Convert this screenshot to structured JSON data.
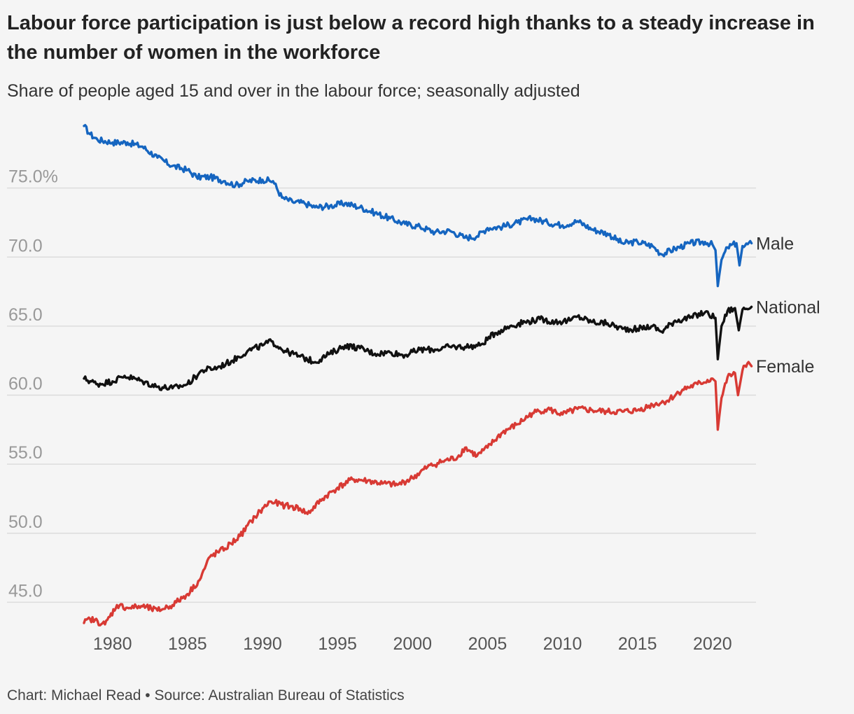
{
  "title": "Labour force participation is just below a record high thanks to a steady increase in the number of women in the workforce",
  "subtitle": "Share of people aged 15 and over in the labour force; seasonally adjusted",
  "footer": {
    "credit": "Chart: Michael Read",
    "separator": "•",
    "source": "Source: Australian Bureau of Statistics"
  },
  "chart_data": {
    "type": "line",
    "title": "Labour force participation is just below a record high thanks to a steady increase in the number of women in the workforce",
    "subtitle": "Share of people aged 15 and over in the labour force; seasonally adjusted",
    "xlabel": "",
    "ylabel": "",
    "xlim": [
      1978.1,
      2022.9
    ],
    "ylim": [
      43.5,
      80
    ],
    "x_ticks": [
      1980,
      1985,
      1990,
      1995,
      2000,
      2005,
      2010,
      2015,
      2020
    ],
    "y_ticks": [
      {
        "value": 45,
        "label": "45.0"
      },
      {
        "value": 50,
        "label": "50.0"
      },
      {
        "value": 55,
        "label": "55.0"
      },
      {
        "value": 60,
        "label": "60.0"
      },
      {
        "value": 65,
        "label": "65.0"
      },
      {
        "value": 70,
        "label": "70.0"
      },
      {
        "value": 75,
        "label": "75.0%"
      }
    ],
    "grid": true,
    "legend": "direct labels at right end of lines",
    "series": [
      {
        "name": "Male",
        "color": "#1565c0",
        "points": [
          [
            1978.1,
            79.5
          ],
          [
            1978.5,
            78.9
          ],
          [
            1979.0,
            78.5
          ],
          [
            1980.0,
            78.3
          ],
          [
            1981.0,
            78.3
          ],
          [
            1982.0,
            78.0
          ],
          [
            1983.0,
            77.2
          ],
          [
            1984.0,
            76.6
          ],
          [
            1985.0,
            76.3
          ],
          [
            1985.6,
            75.8
          ],
          [
            1986.5,
            75.8
          ],
          [
            1987.5,
            75.5
          ],
          [
            1988.2,
            75.2
          ],
          [
            1989.0,
            75.5
          ],
          [
            1990.0,
            75.6
          ],
          [
            1990.7,
            75.5
          ],
          [
            1991.3,
            74.3
          ],
          [
            1992.0,
            74.0
          ],
          [
            1992.8,
            73.9
          ],
          [
            1993.5,
            73.6
          ],
          [
            1994.5,
            73.7
          ],
          [
            1995.5,
            73.9
          ],
          [
            1996.5,
            73.6
          ],
          [
            1997.5,
            73.2
          ],
          [
            1998.5,
            72.8
          ],
          [
            1999.5,
            72.4
          ],
          [
            2000.5,
            72.2
          ],
          [
            2001.5,
            71.8
          ],
          [
            2002.5,
            71.9
          ],
          [
            2003.5,
            71.4
          ],
          [
            2004.3,
            71.5
          ],
          [
            2005.0,
            72.1
          ],
          [
            2006.0,
            72.2
          ],
          [
            2007.0,
            72.5
          ],
          [
            2008.0,
            72.8
          ],
          [
            2009.0,
            72.5
          ],
          [
            2010.0,
            72.3
          ],
          [
            2011.0,
            72.6
          ],
          [
            2012.0,
            72.0
          ],
          [
            2013.0,
            71.7
          ],
          [
            2014.0,
            71.0
          ],
          [
            2015.0,
            71.1
          ],
          [
            2016.0,
            70.8
          ],
          [
            2016.6,
            70.2
          ],
          [
            2017.5,
            70.6
          ],
          [
            2018.5,
            71.0
          ],
          [
            2019.5,
            71.1
          ],
          [
            2020.0,
            70.9
          ],
          [
            2020.2,
            70.5
          ],
          [
            2020.35,
            67.9
          ],
          [
            2020.6,
            69.8
          ],
          [
            2021.0,
            70.7
          ],
          [
            2021.6,
            71.0
          ],
          [
            2021.8,
            69.4
          ],
          [
            2022.0,
            70.8
          ],
          [
            2022.6,
            71.0
          ]
        ]
      },
      {
        "name": "National",
        "color": "#111111",
        "points": [
          [
            1978.1,
            61.2
          ],
          [
            1979.0,
            60.8
          ],
          [
            1980.0,
            61.0
          ],
          [
            1980.8,
            61.4
          ],
          [
            1982.0,
            61.0
          ],
          [
            1983.0,
            60.6
          ],
          [
            1984.0,
            60.5
          ],
          [
            1985.0,
            60.8
          ],
          [
            1986.0,
            61.8
          ],
          [
            1987.0,
            62.0
          ],
          [
            1988.0,
            62.5
          ],
          [
            1989.0,
            63.2
          ],
          [
            1990.0,
            63.6
          ],
          [
            1990.6,
            63.9
          ],
          [
            1991.5,
            63.2
          ],
          [
            1992.5,
            62.8
          ],
          [
            1993.5,
            62.4
          ],
          [
            1994.5,
            63.0
          ],
          [
            1995.5,
            63.6
          ],
          [
            1996.5,
            63.4
          ],
          [
            1997.5,
            63.0
          ],
          [
            1998.5,
            63.1
          ],
          [
            1999.5,
            62.9
          ],
          [
            2000.5,
            63.3
          ],
          [
            2001.5,
            63.3
          ],
          [
            2002.5,
            63.5
          ],
          [
            2003.5,
            63.5
          ],
          [
            2004.5,
            63.6
          ],
          [
            2005.5,
            64.5
          ],
          [
            2006.5,
            65.0
          ],
          [
            2007.5,
            65.3
          ],
          [
            2008.5,
            65.5
          ],
          [
            2009.5,
            65.3
          ],
          [
            2010.5,
            65.4
          ],
          [
            2011.0,
            65.7
          ],
          [
            2012.0,
            65.3
          ],
          [
            2013.0,
            65.2
          ],
          [
            2014.0,
            64.8
          ],
          [
            2015.0,
            64.8
          ],
          [
            2016.0,
            65.0
          ],
          [
            2016.6,
            64.6
          ],
          [
            2017.5,
            65.4
          ],
          [
            2018.5,
            65.6
          ],
          [
            2019.5,
            66.0
          ],
          [
            2020.2,
            65.6
          ],
          [
            2020.35,
            62.6
          ],
          [
            2020.6,
            65.0
          ],
          [
            2021.0,
            66.1
          ],
          [
            2021.5,
            66.3
          ],
          [
            2021.75,
            64.7
          ],
          [
            2022.0,
            66.2
          ],
          [
            2022.6,
            66.4
          ]
        ]
      },
      {
        "name": "Female",
        "color": "#d83a34",
        "points": [
          [
            1978.1,
            43.5
          ],
          [
            1978.5,
            43.8
          ],
          [
            1979.5,
            43.4
          ],
          [
            1980.3,
            44.8
          ],
          [
            1981.0,
            44.6
          ],
          [
            1982.0,
            44.7
          ],
          [
            1983.0,
            44.4
          ],
          [
            1984.0,
            44.8
          ],
          [
            1985.0,
            45.6
          ],
          [
            1985.8,
            46.6
          ],
          [
            1986.5,
            48.3
          ],
          [
            1987.5,
            48.9
          ],
          [
            1988.5,
            49.8
          ],
          [
            1989.5,
            51.2
          ],
          [
            1990.5,
            52.3
          ],
          [
            1991.5,
            52.0
          ],
          [
            1992.5,
            51.8
          ],
          [
            1993.0,
            51.4
          ],
          [
            1994.0,
            52.5
          ],
          [
            1995.0,
            53.3
          ],
          [
            1996.0,
            53.9
          ],
          [
            1997.0,
            53.8
          ],
          [
            1998.0,
            53.6
          ],
          [
            1999.0,
            53.5
          ],
          [
            2000.0,
            54.0
          ],
          [
            2001.0,
            54.8
          ],
          [
            2002.0,
            55.2
          ],
          [
            2003.0,
            55.5
          ],
          [
            2003.5,
            56.2
          ],
          [
            2004.3,
            55.6
          ],
          [
            2005.0,
            56.2
          ],
          [
            2006.0,
            57.3
          ],
          [
            2007.0,
            57.9
          ],
          [
            2008.0,
            58.7
          ],
          [
            2009.0,
            59.0
          ],
          [
            2010.0,
            58.6
          ],
          [
            2011.0,
            59.0
          ],
          [
            2012.0,
            58.9
          ],
          [
            2013.0,
            58.8
          ],
          [
            2014.0,
            58.8
          ],
          [
            2015.0,
            58.9
          ],
          [
            2016.0,
            59.3
          ],
          [
            2017.0,
            59.6
          ],
          [
            2018.0,
            60.4
          ],
          [
            2019.0,
            60.8
          ],
          [
            2020.0,
            61.2
          ],
          [
            2020.2,
            61.0
          ],
          [
            2020.35,
            57.5
          ],
          [
            2020.6,
            59.8
          ],
          [
            2021.0,
            61.3
          ],
          [
            2021.5,
            61.6
          ],
          [
            2021.7,
            60.0
          ],
          [
            2022.0,
            61.8
          ],
          [
            2022.4,
            62.4
          ],
          [
            2022.6,
            62.1
          ]
        ]
      }
    ]
  }
}
